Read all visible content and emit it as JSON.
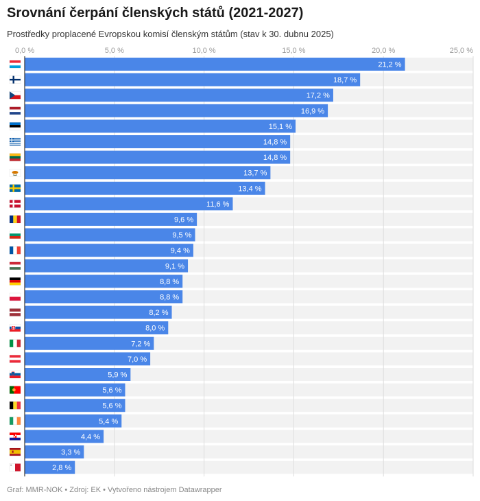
{
  "header": {
    "title": "Srovnání čerpání členských států (2021-2027)",
    "subtitle": "Prostředky proplacené Evropskou komisí členským státům (stav k 30. dubnu 2025)"
  },
  "footer": {
    "text": "Graf: MMR-NOK • Zdroj: EK • Vytvořeno nástrojem Datawrapper"
  },
  "colors": {
    "bar": "#4a86e8",
    "row_bg": "#f2f2f2",
    "grid": "#dddddd",
    "axis": "#333333"
  },
  "chart_data": {
    "type": "bar",
    "orientation": "horizontal",
    "title": "Srovnání čerpání členských států (2021-2027)",
    "subtitle": "Prostředky proplacené Evropskou komisí členským státům (stav k 30. dubnu 2025)",
    "xlim": [
      0,
      25
    ],
    "ticks": [
      "0,0 %",
      "5,0 %",
      "10,0 %",
      "15,0 %",
      "20,0 %",
      "25,0 %"
    ],
    "tick_values": [
      0,
      5,
      10,
      15,
      20,
      25
    ],
    "grid": true,
    "categories": [
      "LU",
      "FI",
      "CZ",
      "NL",
      "EE",
      "GR",
      "LT",
      "CY",
      "SE",
      "DK",
      "RO",
      "BG",
      "FR",
      "HU",
      "DE",
      "PL",
      "LV",
      "SK",
      "IT",
      "AT",
      "SI",
      "PT",
      "BE",
      "IE",
      "HR",
      "ES",
      "MT"
    ],
    "flag_icons": [
      "flag-luxembourg-icon",
      "flag-finland-icon",
      "flag-czechia-icon",
      "flag-netherlands-icon",
      "flag-estonia-icon",
      "flag-greece-icon",
      "flag-lithuania-icon",
      "flag-cyprus-icon",
      "flag-sweden-icon",
      "flag-denmark-icon",
      "flag-romania-icon",
      "flag-bulgaria-icon",
      "flag-france-icon",
      "flag-hungary-icon",
      "flag-germany-icon",
      "flag-poland-icon",
      "flag-latvia-icon",
      "flag-slovakia-icon",
      "flag-italy-icon",
      "flag-austria-icon",
      "flag-slovenia-icon",
      "flag-portugal-icon",
      "flag-belgium-icon",
      "flag-ireland-icon",
      "flag-croatia-icon",
      "flag-spain-icon",
      "flag-malta-icon"
    ],
    "values": [
      21.2,
      18.7,
      17.2,
      16.9,
      15.1,
      14.8,
      14.8,
      13.7,
      13.4,
      11.6,
      9.6,
      9.5,
      9.4,
      9.1,
      8.8,
      8.8,
      8.2,
      8.0,
      7.2,
      7.0,
      5.9,
      5.6,
      5.6,
      5.4,
      4.4,
      3.3,
      2.8
    ],
    "labels": [
      "21,2 %",
      "18,7 %",
      "17,2 %",
      "16,9 %",
      "15,1 %",
      "14,8 %",
      "14,8 %",
      "13,7 %",
      "13,4 %",
      "11,6 %",
      "9,6 %",
      "9,5 %",
      "9,4 %",
      "9,1 %",
      "8,8 %",
      "8,8 %",
      "8,2 %",
      "8,0 %",
      "7,2 %",
      "7,0 %",
      "5,9 %",
      "5,6 %",
      "5,6 %",
      "5,4 %",
      "4,4 %",
      "3,3 %",
      "2,8 %"
    ]
  }
}
